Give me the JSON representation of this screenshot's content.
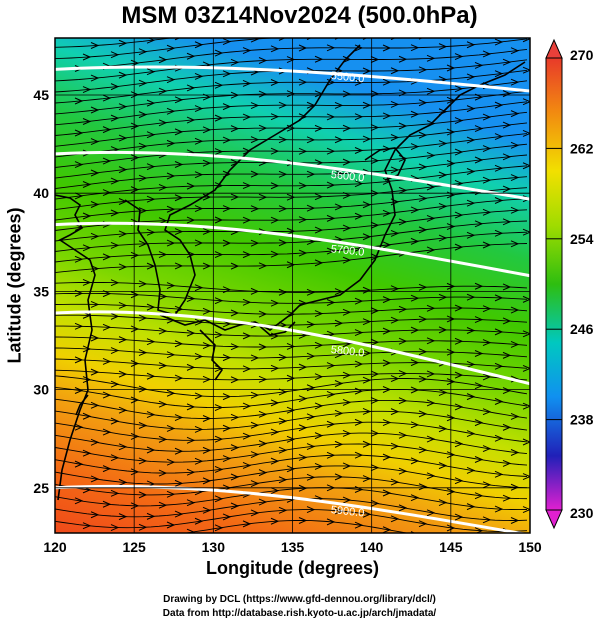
{
  "title": "MSM 03Z14Nov2024 (500.0hPa)",
  "xlabel": "Longitude (degrees)",
  "ylabel": "Latitude  (degrees)",
  "credit_line1": "Drawing by DCL (https://www.gfd-dennou.org/library/dcl/)",
  "credit_line2": "Data from http://database.rish.kyoto-u.ac.jp/arch/jmadata/",
  "x_ticks": [
    "120",
    "125",
    "130",
    "135",
    "140",
    "145",
    "150"
  ],
  "y_ticks": [
    "25",
    "30",
    "35",
    "40",
    "45"
  ],
  "colorbar_ticks": [
    "270",
    "262",
    "254",
    "246",
    "238",
    "230"
  ],
  "contours": [
    {
      "label": "5500.0",
      "lat_west": 46.3,
      "lat_east": 45.2
    },
    {
      "label": "5600.0",
      "lat_west": 42.0,
      "lat_east": 39.7
    },
    {
      "label": "5700.0",
      "lat_west": 38.4,
      "lat_east": 35.8
    },
    {
      "label": "5800.0",
      "lat_west": 33.9,
      "lat_east": 30.3
    },
    {
      "label": "5900.0",
      "lat_west": 25.0,
      "lat_east": 22.6
    }
  ],
  "colors": {
    "cb_high": "#e8403a",
    "cb_mid_warm": "#f2e600",
    "cb_mid": "#2ec000",
    "cb_cool": "#00c8e0",
    "cb_low": "#2222c0",
    "cb_lowest": "#e020d0"
  },
  "chart_data": {
    "type": "heatmap",
    "title": "MSM 03Z14Nov2024 (500.0hPa)",
    "xlabel": "Longitude (degrees)",
    "ylabel": "Latitude  (degrees)",
    "xlim": [
      120,
      150
    ],
    "ylim": [
      22.7,
      47.9
    ],
    "colorbar_range": [
      230,
      270
    ],
    "colorbar_ticks": [
      270,
      262,
      254,
      246,
      238,
      230
    ],
    "contour_levels": [
      5500.0,
      5600.0,
      5700.0,
      5800.0,
      5900.0
    ]
  }
}
